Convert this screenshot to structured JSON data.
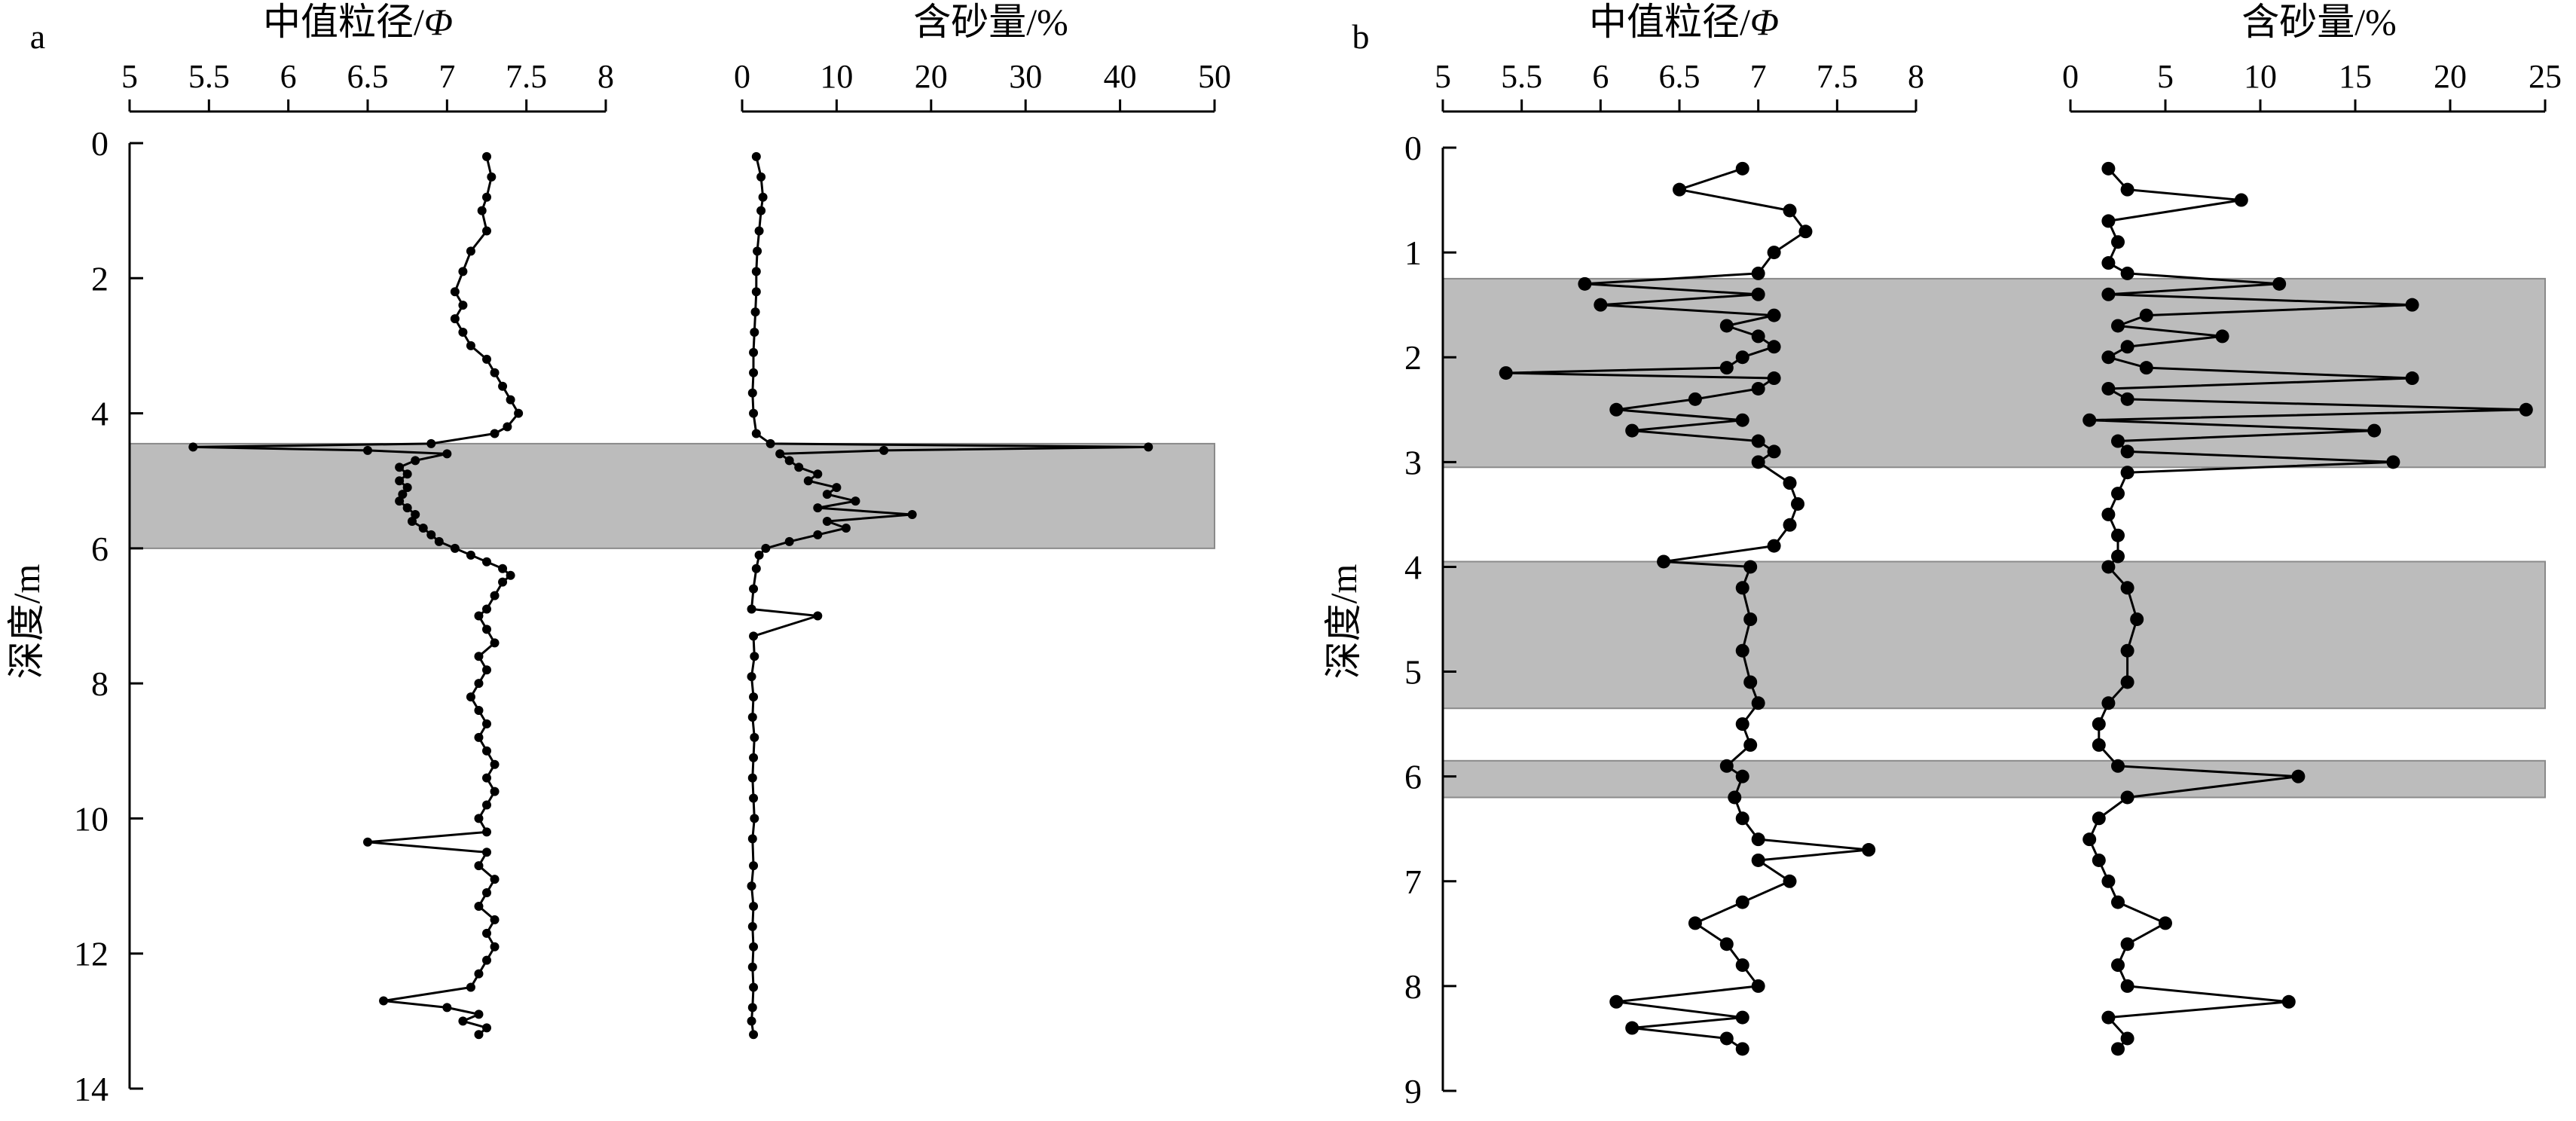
{
  "chart_data": [
    {
      "panel_label": "a",
      "type": "line",
      "ylabel": "深度/m",
      "ylim": [
        0,
        14
      ],
      "yticks": [
        0,
        2,
        4,
        6,
        8,
        10,
        12,
        14
      ],
      "y_inverted": true,
      "shaded_bands": [
        [
          4.45,
          6.0
        ]
      ],
      "tracks": [
        {
          "xlabel": "中值粒径/Φ",
          "xlim": [
            5,
            8
          ],
          "xticks": [
            "5",
            "5.5",
            "6",
            "6.5",
            "7",
            "7.5",
            "8"
          ],
          "series": {
            "y": [
              0.2,
              0.5,
              0.8,
              1.0,
              1.3,
              1.6,
              1.9,
              2.2,
              2.4,
              2.6,
              2.8,
              3.0,
              3.2,
              3.4,
              3.6,
              3.8,
              4.0,
              4.2,
              4.3,
              4.45,
              4.5,
              4.55,
              4.6,
              4.7,
              4.8,
              4.9,
              5.0,
              5.1,
              5.2,
              5.3,
              5.4,
              5.5,
              5.6,
              5.7,
              5.8,
              5.9,
              6.0,
              6.1,
              6.2,
              6.3,
              6.4,
              6.5,
              6.7,
              6.9,
              7.0,
              7.2,
              7.4,
              7.6,
              7.8,
              8.0,
              8.2,
              8.4,
              8.6,
              8.8,
              9.0,
              9.2,
              9.4,
              9.6,
              9.8,
              10.0,
              10.2,
              10.35,
              10.5,
              10.7,
              10.9,
              11.1,
              11.3,
              11.5,
              11.7,
              11.9,
              12.1,
              12.3,
              12.5,
              12.7,
              12.8,
              12.9,
              13.0,
              13.1,
              13.2
            ],
            "x": [
              7.25,
              7.28,
              7.25,
              7.22,
              7.25,
              7.15,
              7.1,
              7.05,
              7.1,
              7.05,
              7.1,
              7.15,
              7.25,
              7.3,
              7.35,
              7.4,
              7.45,
              7.38,
              7.3,
              6.9,
              5.4,
              6.5,
              7.0,
              6.8,
              6.7,
              6.75,
              6.7,
              6.75,
              6.72,
              6.7,
              6.75,
              6.8,
              6.78,
              6.85,
              6.9,
              6.95,
              7.05,
              7.15,
              7.25,
              7.35,
              7.4,
              7.35,
              7.3,
              7.25,
              7.2,
              7.25,
              7.3,
              7.2,
              7.25,
              7.2,
              7.15,
              7.2,
              7.25,
              7.2,
              7.25,
              7.3,
              7.25,
              7.3,
              7.25,
              7.2,
              7.25,
              6.5,
              7.25,
              7.2,
              7.3,
              7.25,
              7.2,
              7.3,
              7.25,
              7.3,
              7.25,
              7.2,
              7.15,
              6.6,
              7.0,
              7.2,
              7.1,
              7.25,
              7.2
            ]
          }
        },
        {
          "xlabel": "含砂量/%",
          "xlim": [
            0,
            50
          ],
          "xticks": [
            "0",
            "10",
            "20",
            "30",
            "40",
            "50"
          ],
          "series": {
            "y": [
              0.2,
              0.5,
              0.8,
              1.0,
              1.3,
              1.6,
              1.9,
              2.2,
              2.5,
              2.8,
              3.1,
              3.4,
              3.7,
              4.0,
              4.3,
              4.45,
              4.5,
              4.55,
              4.6,
              4.7,
              4.8,
              4.9,
              5.0,
              5.1,
              5.2,
              5.3,
              5.4,
              5.5,
              5.6,
              5.7,
              5.8,
              5.9,
              6.0,
              6.1,
              6.3,
              6.6,
              6.9,
              7.0,
              7.3,
              7.6,
              7.9,
              8.2,
              8.5,
              8.8,
              9.1,
              9.4,
              9.7,
              10.0,
              10.3,
              10.7,
              11.0,
              11.3,
              11.6,
              11.9,
              12.2,
              12.5,
              12.8,
              13.0,
              13.2
            ],
            "x": [
              1.5,
              2.0,
              2.2,
              2.0,
              1.8,
              1.6,
              1.5,
              1.5,
              1.4,
              1.3,
              1.2,
              1.2,
              1.1,
              1.2,
              1.5,
              3.0,
              43.0,
              15.0,
              4.0,
              5.0,
              6.0,
              8.0,
              7.0,
              10.0,
              9.0,
              12.0,
              8.0,
              18.0,
              9.0,
              11.0,
              8.0,
              5.0,
              2.5,
              1.8,
              1.5,
              1.2,
              1.0,
              8.0,
              1.2,
              1.3,
              1.0,
              1.2,
              1.1,
              1.3,
              1.2,
              1.1,
              1.2,
              1.3,
              1.1,
              1.2,
              1.0,
              1.2,
              1.1,
              1.2,
              1.1,
              1.2,
              1.1,
              1.0,
              1.2
            ]
          }
        }
      ]
    },
    {
      "panel_label": "b",
      "type": "line",
      "ylabel": "深度/m",
      "ylim": [
        0,
        9
      ],
      "yticks": [
        0,
        1,
        2,
        3,
        4,
        5,
        6,
        7,
        8,
        9
      ],
      "y_inverted": true,
      "shaded_bands": [
        [
          1.25,
          3.05
        ],
        [
          3.95,
          5.35
        ],
        [
          5.85,
          6.2
        ]
      ],
      "tracks": [
        {
          "xlabel": "中值粒径/Φ",
          "xlim": [
            5,
            8
          ],
          "xticks": [
            "5",
            "5.5",
            "6",
            "6.5",
            "7",
            "7.5",
            "8"
          ],
          "series": {
            "y": [
              0.2,
              0.4,
              0.6,
              0.8,
              1.0,
              1.2,
              1.3,
              1.4,
              1.5,
              1.6,
              1.7,
              1.8,
              1.9,
              2.0,
              2.1,
              2.15,
              2.2,
              2.3,
              2.4,
              2.5,
              2.6,
              2.7,
              2.8,
              2.9,
              3.0,
              3.2,
              3.4,
              3.6,
              3.8,
              3.95,
              4.0,
              4.2,
              4.5,
              4.8,
              5.1,
              5.3,
              5.5,
              5.7,
              5.9,
              6.0,
              6.2,
              6.4,
              6.6,
              6.7,
              6.8,
              7.0,
              7.2,
              7.4,
              7.6,
              7.8,
              8.0,
              8.15,
              8.3,
              8.4,
              8.5,
              8.6
            ],
            "x": [
              6.9,
              6.5,
              7.2,
              7.3,
              7.1,
              7.0,
              5.9,
              7.0,
              6.0,
              7.1,
              6.8,
              7.0,
              7.1,
              6.9,
              6.8,
              5.4,
              7.1,
              7.0,
              6.6,
              6.1,
              6.9,
              6.2,
              7.0,
              7.1,
              7.0,
              7.2,
              7.25,
              7.2,
              7.1,
              6.4,
              6.95,
              6.9,
              6.95,
              6.9,
              6.95,
              7.0,
              6.9,
              6.95,
              6.8,
              6.9,
              6.85,
              6.9,
              7.0,
              7.7,
              7.0,
              7.2,
              6.9,
              6.6,
              6.8,
              6.9,
              7.0,
              6.1,
              6.9,
              6.2,
              6.8,
              6.9
            ]
          }
        },
        {
          "xlabel": "含砂量/%",
          "xlim": [
            0,
            25
          ],
          "xticks": [
            "0",
            "5",
            "10",
            "15",
            "20",
            "25"
          ],
          "series": {
            "y": [
              0.2,
              0.4,
              0.5,
              0.7,
              0.9,
              1.1,
              1.2,
              1.3,
              1.4,
              1.5,
              1.6,
              1.7,
              1.8,
              1.9,
              2.0,
              2.1,
              2.2,
              2.3,
              2.4,
              2.5,
              2.6,
              2.7,
              2.8,
              2.9,
              3.0,
              3.1,
              3.3,
              3.5,
              3.7,
              3.9,
              4.0,
              4.2,
              4.5,
              4.8,
              5.1,
              5.3,
              5.5,
              5.7,
              5.9,
              6.0,
              6.2,
              6.4,
              6.6,
              6.8,
              7.0,
              7.2,
              7.4,
              7.6,
              7.8,
              8.0,
              8.15,
              8.3,
              8.5,
              8.6
            ],
            "x": [
              2.0,
              3.0,
              9.0,
              2.0,
              2.5,
              2.0,
              3.0,
              11.0,
              2.0,
              18.0,
              4.0,
              2.5,
              8.0,
              3.0,
              2.0,
              4.0,
              18.0,
              2.0,
              3.0,
              24.0,
              1.0,
              16.0,
              2.5,
              3.0,
              17.0,
              3.0,
              2.5,
              2.0,
              2.5,
              2.5,
              2.0,
              3.0,
              3.5,
              3.0,
              3.0,
              2.0,
              1.5,
              1.5,
              2.5,
              12.0,
              3.0,
              1.5,
              1.0,
              1.5,
              2.0,
              2.5,
              5.0,
              3.0,
              2.5,
              3.0,
              11.5,
              2.0,
              3.0,
              2.5
            ]
          }
        }
      ]
    }
  ]
}
